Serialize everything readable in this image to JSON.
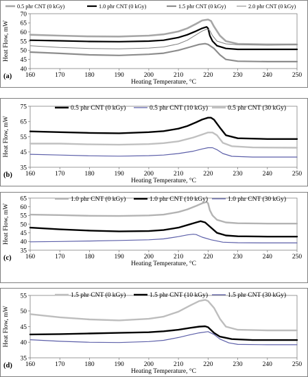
{
  "chart_data": [
    {
      "type": "line",
      "panel_label": "(a)",
      "xlabel": "Heating Temperature, °C",
      "ylabel": "Heat Flow, mW",
      "xlim": [
        160,
        250
      ],
      "ylim": [
        40,
        70
      ],
      "x_ticks": [
        "160",
        "170",
        "180",
        "190",
        "200",
        "210",
        "220",
        "230",
        "240",
        "250"
      ],
      "y_ticks": [
        "40",
        "45",
        "50",
        "55",
        "60",
        "65",
        "70"
      ],
      "grid": false,
      "legend_position": "top",
      "series": [
        {
          "name": "0.5 phr CNT (0 kGy)",
          "color": "#a6a6a6",
          "width": 2.6,
          "points": [
            [
              160,
              58.5
            ],
            [
              170,
              58
            ],
            [
              180,
              57.6
            ],
            [
              190,
              57.5
            ],
            [
              200,
              58
            ],
            [
              205,
              58.7
            ],
            [
              210,
              60.3
            ],
            [
              213,
              62
            ],
            [
              216,
              64.5
            ],
            [
              218,
              66.3
            ],
            [
              220,
              66.8
            ],
            [
              221,
              66
            ],
            [
              222,
              63
            ],
            [
              224,
              58
            ],
            [
              226,
              55
            ],
            [
              230,
              53.5
            ],
            [
              240,
              53.2
            ],
            [
              250,
              53.2
            ]
          ]
        },
        {
          "name": "1.0 phr CNT (0 kGy)",
          "color": "#000000",
          "width": 2.2,
          "points": [
            [
              160,
              55.5
            ],
            [
              170,
              55.2
            ],
            [
              180,
              54.8
            ],
            [
              190,
              54.7
            ],
            [
              200,
              55
            ],
            [
              205,
              55.5
            ],
            [
              210,
              57
            ],
            [
              213,
              58.5
            ],
            [
              216,
              60.5
            ],
            [
              218,
              62
            ],
            [
              219.5,
              62.8
            ],
            [
              220,
              62
            ],
            [
              220.6,
              58
            ],
            [
              221.5,
              55
            ],
            [
              223,
              52.5
            ],
            [
              226,
              51
            ],
            [
              230,
              50.5
            ],
            [
              240,
              50.5
            ],
            [
              250,
              50.5
            ]
          ]
        },
        {
          "name": "1.5 phr CNT (0 kGy)",
          "color": "#8c8c8c",
          "width": 2.2,
          "points": [
            [
              160,
              49
            ],
            [
              170,
              48.3
            ],
            [
              180,
              47.5
            ],
            [
              190,
              47.2
            ],
            [
              200,
              47.8
            ],
            [
              205,
              48.4
            ],
            [
              210,
              50
            ],
            [
              214,
              51.8
            ],
            [
              217,
              53.2
            ],
            [
              219,
              53.6
            ],
            [
              220,
              53.2
            ],
            [
              222,
              51
            ],
            [
              224,
              47.5
            ],
            [
              226,
              45
            ],
            [
              230,
              44
            ],
            [
              240,
              43.8
            ],
            [
              250,
              43.8
            ]
          ]
        },
        {
          "name": "2.0 phr CNT (0 kGy)",
          "color": "#7f7f7f",
          "width": 1.0,
          "points": [
            [
              160,
              52.5
            ],
            [
              170,
              51.5
            ],
            [
              180,
              51
            ],
            [
              190,
              50.8
            ],
            [
              200,
              51.2
            ],
            [
              205,
              51.8
            ],
            [
              210,
              53.5
            ],
            [
              213,
              55.5
            ],
            [
              216,
              58.5
            ],
            [
              218,
              60.5
            ],
            [
              219.5,
              61.5
            ],
            [
              220.5,
              61
            ],
            [
              221.5,
              58
            ],
            [
              223,
              55
            ],
            [
              226,
              53.5
            ],
            [
              230,
              53
            ],
            [
              240,
              52.8
            ],
            [
              250,
              53
            ]
          ]
        }
      ]
    },
    {
      "type": "line",
      "panel_label": "(b)",
      "xlabel": "Heating Temperature, °C",
      "ylabel": "Heat Flow, mW",
      "xlim": [
        160,
        250
      ],
      "ylim": [
        35,
        75
      ],
      "x_ticks": [
        "160",
        "170",
        "180",
        "190",
        "200",
        "210",
        "220",
        "230",
        "240",
        "250"
      ],
      "y_ticks": [
        "35",
        "45",
        "55",
        "65",
        "75"
      ],
      "grid": false,
      "legend_position": "top",
      "series": [
        {
          "name": "0.5 phr CNT (0 kGy)",
          "color": "#000000",
          "width": 2.4,
          "points": [
            [
              160,
              58.5
            ],
            [
              170,
              58
            ],
            [
              180,
              57.5
            ],
            [
              190,
              57.3
            ],
            [
              200,
              58
            ],
            [
              205,
              58.7
            ],
            [
              210,
              60.3
            ],
            [
              213,
              62
            ],
            [
              216,
              64.5
            ],
            [
              218,
              66.3
            ],
            [
              220,
              67.5
            ],
            [
              221,
              67.5
            ],
            [
              222,
              66.2
            ],
            [
              224,
              61
            ],
            [
              226,
              56
            ],
            [
              230,
              54
            ],
            [
              240,
              53.5
            ],
            [
              250,
              53.5
            ]
          ]
        },
        {
          "name": "0.5 phr CNT (10 kGy)",
          "color": "#5b5ea8",
          "width": 1.2,
          "points": [
            [
              160,
              43.5
            ],
            [
              170,
              43
            ],
            [
              180,
              42.5
            ],
            [
              190,
              42.3
            ],
            [
              200,
              42.6
            ],
            [
              205,
              43
            ],
            [
              210,
              44
            ],
            [
              215,
              45.5
            ],
            [
              218,
              47
            ],
            [
              220,
              47.8
            ],
            [
              221.5,
              47.8
            ],
            [
              223,
              46.5
            ],
            [
              225,
              44
            ],
            [
              228,
              42.2
            ],
            [
              235,
              41.7
            ],
            [
              250,
              41.7
            ]
          ]
        },
        {
          "name": "0.5 phr CNT (30 kGy)",
          "color": "#c0c0c0",
          "width": 2.4,
          "points": [
            [
              160,
              50.5
            ],
            [
              170,
              50.5
            ],
            [
              180,
              50
            ],
            [
              190,
              49.8
            ],
            [
              200,
              50.2
            ],
            [
              205,
              50.8
            ],
            [
              210,
              52
            ],
            [
              215,
              54.5
            ],
            [
              218,
              56.5
            ],
            [
              220,
              57.8
            ],
            [
              221.5,
              57.8
            ],
            [
              223,
              56
            ],
            [
              225,
              51
            ],
            [
              228,
              48.8
            ],
            [
              235,
              48
            ],
            [
              250,
              47.8
            ]
          ]
        }
      ]
    },
    {
      "type": "line",
      "panel_label": "(c)",
      "xlabel": "Heating Temperature, °C",
      "ylabel": "Heat Flow, mW",
      "xlim": [
        160,
        250
      ],
      "ylim": [
        35,
        65
      ],
      "x_ticks": [
        "160",
        "170",
        "180",
        "190",
        "200",
        "210",
        "220",
        "230",
        "240",
        "250"
      ],
      "y_ticks": [
        "35",
        "40",
        "45",
        "50",
        "55",
        "60",
        "65"
      ],
      "grid": false,
      "legend_position": "top",
      "series": [
        {
          "name": "1.0 phr CNT (0 kGy)",
          "color": "#b3b3b3",
          "width": 2.4,
          "points": [
            [
              160,
              55.5
            ],
            [
              170,
              55.2
            ],
            [
              180,
              54.8
            ],
            [
              190,
              54.7
            ],
            [
              200,
              55
            ],
            [
              205,
              55.5
            ],
            [
              210,
              57
            ],
            [
              213,
              58.5
            ],
            [
              216,
              60.5
            ],
            [
              218,
              62
            ],
            [
              219.5,
              62.8
            ],
            [
              220,
              62
            ],
            [
              220.6,
              58
            ],
            [
              221.5,
              55
            ],
            [
              223,
              52.5
            ],
            [
              226,
              51
            ],
            [
              230,
              50.5
            ],
            [
              240,
              50.3
            ],
            [
              250,
              50.3
            ]
          ]
        },
        {
          "name": "1.0 phr CNT (10 kGy)",
          "color": "#000000",
          "width": 2.4,
          "points": [
            [
              160,
              48
            ],
            [
              170,
              47
            ],
            [
              180,
              46.3
            ],
            [
              190,
              45.8
            ],
            [
              200,
              46
            ],
            [
              205,
              46.6
            ],
            [
              210,
              48
            ],
            [
              213,
              49.5
            ],
            [
              216,
              51
            ],
            [
              217.5,
              51.7
            ],
            [
              219,
              51
            ],
            [
              221,
              48
            ],
            [
              223,
              45
            ],
            [
              226,
              43.5
            ],
            [
              230,
              43
            ],
            [
              240,
              42.8
            ],
            [
              250,
              42.8
            ]
          ]
        },
        {
          "name": "1.0 phr CNT (30 kGy)",
          "color": "#5b5ea8",
          "width": 1.2,
          "points": [
            [
              160,
              39.8
            ],
            [
              170,
              40
            ],
            [
              180,
              40.3
            ],
            [
              190,
              40.6
            ],
            [
              200,
              41
            ],
            [
              205,
              41.5
            ],
            [
              210,
              42.8
            ],
            [
              213,
              43.8
            ],
            [
              215,
              44.2
            ],
            [
              216,
              44
            ],
            [
              218,
              42.5
            ],
            [
              221,
              41
            ],
            [
              225,
              39.6
            ],
            [
              230,
              39.3
            ],
            [
              240,
              39.2
            ],
            [
              250,
              39.2
            ]
          ]
        }
      ]
    },
    {
      "type": "line",
      "panel_label": "(d)",
      "xlabel": "Heating Temperature, °C",
      "ylabel": "Heat Flow, mW",
      "xlim": [
        160,
        250
      ],
      "ylim": [
        35,
        55
      ],
      "x_ticks": [
        "160",
        "170",
        "180",
        "190",
        "200",
        "210",
        "220",
        "230",
        "240",
        "250"
      ],
      "y_ticks": [
        "35",
        "40",
        "45",
        "50",
        "55"
      ],
      "grid": false,
      "legend_position": "top",
      "series": [
        {
          "name": "1.5 phr CNT (0 kGy)",
          "color": "#bdbdbd",
          "width": 2.4,
          "points": [
            [
              160,
              49
            ],
            [
              170,
              48
            ],
            [
              180,
              47.3
            ],
            [
              190,
              47
            ],
            [
              200,
              47.5
            ],
            [
              205,
              48.2
            ],
            [
              210,
              49.8
            ],
            [
              214,
              51.8
            ],
            [
              217,
              53.2
            ],
            [
              219,
              53.6
            ],
            [
              220,
              53.2
            ],
            [
              222,
              51
            ],
            [
              224,
              47.5
            ],
            [
              226,
              45
            ],
            [
              230,
              44
            ],
            [
              240,
              43.8
            ],
            [
              250,
              43.8
            ]
          ]
        },
        {
          "name": "1.5 phr CNT (10 kGy)",
          "color": "#000000",
          "width": 2.4,
          "points": [
            [
              160,
              42.5
            ],
            [
              170,
              42.6
            ],
            [
              180,
              42.8
            ],
            [
              190,
              43
            ],
            [
              200,
              43.2
            ],
            [
              205,
              43.5
            ],
            [
              210,
              44
            ],
            [
              214,
              44.6
            ],
            [
              217,
              45
            ],
            [
              219,
              45.1
            ],
            [
              220,
              44.8
            ],
            [
              222,
              43
            ],
            [
              224,
              41.8
            ],
            [
              228,
              41
            ],
            [
              235,
              40.7
            ],
            [
              250,
              40.7
            ]
          ]
        },
        {
          "name": "1.5 phr CNT (30 kGy)",
          "color": "#5b5ea8",
          "width": 1.2,
          "points": [
            [
              160,
              40.8
            ],
            [
              170,
              40.3
            ],
            [
              180,
              40
            ],
            [
              190,
              39.9
            ],
            [
              200,
              40.2
            ],
            [
              205,
              40.6
            ],
            [
              210,
              41.5
            ],
            [
              214,
              42.4
            ],
            [
              217,
              43
            ],
            [
              220,
              43.4
            ],
            [
              222,
              42.5
            ],
            [
              224,
              41
            ],
            [
              227,
              39.8
            ],
            [
              230,
              39.3
            ],
            [
              240,
              39.2
            ],
            [
              250,
              39.2
            ]
          ]
        }
      ]
    }
  ]
}
